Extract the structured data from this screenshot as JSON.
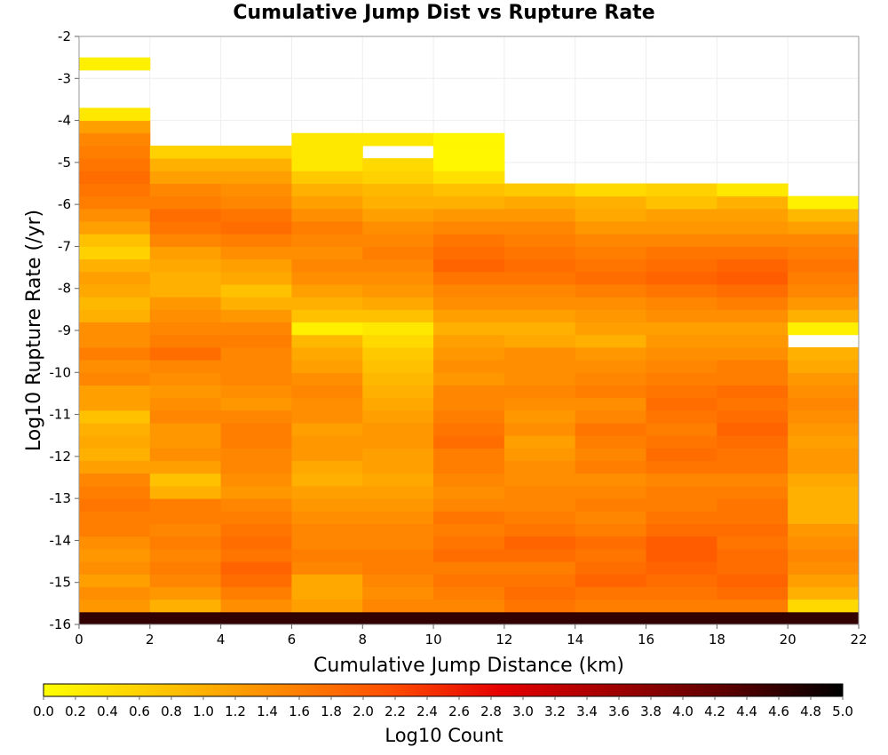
{
  "chart_data": {
    "type": "heatmap",
    "title": "Cumulative Jump Dist vs Rupture Rate",
    "xlabel": "Cumulative Jump Distance (km)",
    "ylabel": "Log10 Rupture Rate (/yr)",
    "xlim": [
      0,
      22
    ],
    "ylim": [
      -16,
      -2
    ],
    "x_ticks": [
      "0",
      "2",
      "4",
      "6",
      "8",
      "10",
      "12",
      "14",
      "16",
      "18",
      "20",
      "22"
    ],
    "y_ticks": [
      "-2",
      "-3",
      "-4",
      "-5",
      "-6",
      "-7",
      "-8",
      "-9",
      "-10",
      "-11",
      "-12",
      "-13",
      "-14",
      "-15",
      "-16"
    ],
    "x_bin_width_km": 2,
    "y_bin_height_log10": 0.3,
    "y_bins_lower_edge_start": -16,
    "colorbar": {
      "label": "Log10 Count",
      "range": [
        0,
        5
      ],
      "ticks": [
        "0.0",
        "0.2",
        "0.4",
        "0.6",
        "0.8",
        "1.0",
        "1.2",
        "1.4",
        "1.6",
        "1.8",
        "2.0",
        "2.2",
        "2.4",
        "2.6",
        "2.8",
        "3.0",
        "3.2",
        "3.4",
        "3.6",
        "3.8",
        "4.0",
        "4.2",
        "4.4",
        "4.6",
        "4.8",
        "5.0"
      ],
      "colors": [
        "#ffff00",
        "#ffc800",
        "#ff8c00",
        "#ff5000",
        "#e60000",
        "#a00000",
        "#5a0000",
        "#000000"
      ]
    },
    "columns": [
      {
        "x_range": [
          0,
          2
        ],
        "values": [
          4.6,
          1.3,
          1.4,
          1.2,
          1.4,
          1.3,
          1.4,
          1.6,
          1.6,
          1.7,
          1.6,
          1.5,
          1.2,
          1.0,
          1.1,
          1.0,
          0.8,
          1.2,
          1.2,
          1.5,
          1.4,
          1.6,
          1.4,
          1.4,
          1.0,
          0.9,
          1.1,
          1.2,
          1.0,
          0.6,
          0.8,
          1.2,
          1.4,
          1.6,
          1.7,
          1.8,
          1.7,
          1.6,
          1.5,
          1.2,
          0.3,
          null,
          null,
          null,
          0.2
        ]
      },
      {
        "x_range": [
          2,
          4
        ],
        "values": [
          4.6,
          1.0,
          1.3,
          1.5,
          1.6,
          1.5,
          1.6,
          1.5,
          1.6,
          1.6,
          1.0,
          0.8,
          1.2,
          1.4,
          1.3,
          1.3,
          1.5,
          1.4,
          1.3,
          1.4,
          1.5,
          1.8,
          1.6,
          1.5,
          1.4,
          1.3,
          1.0,
          1.0,
          1.1,
          1.2,
          1.5,
          1.7,
          1.8,
          1.6,
          1.5,
          1.2,
          1.0,
          0.6,
          null,
          null,
          null,
          null,
          null,
          null,
          null
        ]
      },
      {
        "x_range": [
          4,
          6
        ],
        "values": [
          4.6,
          1.4,
          1.6,
          1.8,
          1.9,
          1.7,
          1.8,
          1.7,
          1.6,
          1.5,
          1.3,
          1.4,
          1.5,
          1.5,
          1.6,
          1.6,
          1.5,
          1.3,
          1.4,
          1.5,
          1.5,
          1.5,
          1.6,
          1.5,
          1.3,
          1.0,
          0.8,
          1.1,
          1.2,
          1.4,
          1.6,
          1.8,
          1.7,
          1.5,
          1.4,
          1.2,
          1.0,
          0.6,
          null,
          null,
          null,
          null,
          null,
          null,
          null
        ]
      },
      {
        "x_range": [
          6,
          8
        ],
        "values": [
          4.6,
          1.2,
          1.1,
          1.1,
          1.5,
          1.6,
          1.5,
          1.5,
          1.4,
          1.3,
          1.2,
          1.0,
          1.1,
          1.3,
          1.3,
          1.2,
          1.4,
          1.4,
          1.5,
          1.4,
          1.2,
          1.1,
          0.9,
          0.2,
          0.8,
          1.0,
          1.2,
          1.4,
          1.5,
          1.4,
          1.5,
          1.6,
          1.4,
          1.2,
          1.0,
          0.7,
          0.3,
          0.3,
          0.3,
          null,
          null,
          null,
          null,
          null,
          null
        ]
      },
      {
        "x_range": [
          8,
          10
        ],
        "values": [
          4.6,
          1.5,
          1.4,
          1.5,
          1.6,
          1.6,
          1.5,
          1.5,
          1.4,
          1.3,
          1.2,
          1.1,
          1.2,
          1.2,
          1.3,
          1.3,
          1.2,
          1.1,
          1.0,
          0.9,
          0.8,
          0.7,
          0.5,
          0.3,
          0.8,
          1.1,
          1.3,
          1.4,
          1.5,
          1.6,
          1.5,
          1.4,
          1.2,
          1.0,
          0.9,
          0.6,
          0.5,
          null,
          0.3,
          null,
          null,
          null,
          null,
          null,
          null
        ]
      },
      {
        "x_range": [
          10,
          12
        ],
        "values": [
          4.6,
          1.5,
          1.6,
          1.7,
          1.6,
          1.8,
          1.7,
          1.6,
          1.7,
          1.5,
          1.4,
          1.5,
          1.6,
          1.6,
          1.8,
          1.7,
          1.6,
          1.5,
          1.5,
          1.3,
          1.4,
          1.3,
          1.2,
          1.0,
          1.2,
          1.4,
          1.5,
          1.7,
          1.9,
          1.8,
          1.7,
          1.5,
          1.3,
          1.0,
          0.8,
          0.4,
          0.1,
          0.1,
          0.1,
          null,
          null,
          null,
          null,
          null,
          null
        ]
      },
      {
        "x_range": [
          12,
          14
        ],
        "values": [
          4.6,
          1.7,
          1.8,
          1.7,
          1.6,
          1.8,
          1.9,
          1.7,
          1.6,
          1.5,
          1.5,
          1.4,
          1.4,
          1.3,
          1.2,
          1.4,
          1.3,
          1.4,
          1.5,
          1.4,
          1.4,
          1.4,
          1.1,
          1.0,
          1.2,
          1.4,
          1.5,
          1.7,
          1.8,
          1.7,
          1.6,
          1.5,
          1.3,
          1.1,
          0.7,
          null,
          null,
          null,
          null,
          null,
          null,
          null,
          null,
          null,
          null
        ]
      },
      {
        "x_range": [
          14,
          16
        ],
        "values": [
          4.6,
          1.6,
          1.7,
          1.9,
          1.8,
          1.7,
          1.8,
          1.6,
          1.5,
          1.6,
          1.5,
          1.4,
          1.6,
          1.5,
          1.6,
          1.7,
          1.5,
          1.4,
          1.6,
          1.5,
          1.4,
          1.3,
          1.0,
          1.2,
          1.3,
          1.4,
          1.6,
          1.8,
          1.7,
          1.6,
          1.5,
          1.3,
          1.1,
          1.0,
          0.5,
          null,
          null,
          null,
          null,
          null,
          null,
          null,
          null,
          null,
          null
        ]
      },
      {
        "x_range": [
          16,
          18
        ],
        "values": [
          4.6,
          1.6,
          1.7,
          1.8,
          1.9,
          2.0,
          2.0,
          1.8,
          1.7,
          1.6,
          1.6,
          1.5,
          1.7,
          1.8,
          1.7,
          1.6,
          1.7,
          1.8,
          1.7,
          1.6,
          1.5,
          1.4,
          1.3,
          1.2,
          1.4,
          1.5,
          1.7,
          1.9,
          1.8,
          1.7,
          1.5,
          1.3,
          1.2,
          0.8,
          0.6,
          null,
          null,
          null,
          null,
          null,
          null,
          null,
          null,
          null,
          null
        ]
      },
      {
        "x_range": [
          18,
          20
        ],
        "values": [
          4.6,
          1.6,
          1.8,
          1.9,
          1.8,
          1.8,
          1.7,
          1.8,
          1.7,
          1.7,
          1.6,
          1.5,
          1.7,
          1.7,
          1.8,
          1.9,
          1.8,
          1.7,
          1.8,
          1.6,
          1.6,
          1.4,
          1.3,
          1.2,
          1.4,
          1.6,
          1.8,
          2.0,
          1.9,
          1.7,
          1.5,
          1.3,
          1.2,
          1.0,
          0.3,
          null,
          null,
          null,
          null,
          null,
          null,
          null,
          null,
          null,
          null
        ]
      },
      {
        "x_range": [
          20,
          22
        ],
        "values": [
          4.6,
          0.5,
          1.0,
          1.2,
          1.4,
          1.5,
          1.4,
          1.3,
          1.0,
          1.0,
          1.0,
          1.1,
          1.3,
          1.3,
          1.2,
          1.3,
          1.4,
          1.5,
          1.4,
          1.3,
          1.1,
          1.0,
          null,
          0.2,
          1.0,
          1.3,
          1.5,
          1.6,
          1.7,
          1.6,
          1.5,
          1.2,
          0.9,
          0.2,
          null,
          null,
          null,
          null,
          null,
          null,
          null,
          null,
          null,
          null,
          null
        ]
      }
    ]
  }
}
